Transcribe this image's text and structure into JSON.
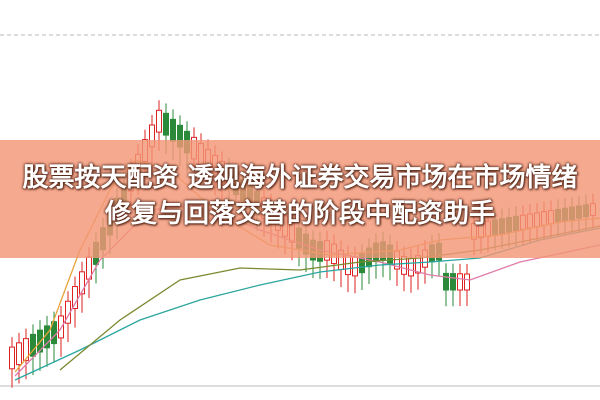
{
  "banner": {
    "title": "股票按天配资 透视海外证券交易市场在市场情绪修复与回落交替的阶段中配资助手"
  }
}
